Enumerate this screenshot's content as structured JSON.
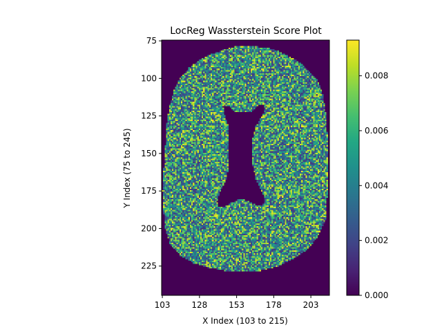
{
  "chart_data": {
    "type": "heatmap",
    "title": "LocReg Wassterstein Score Plot",
    "xlabel": "X Index (103 to 215)",
    "ylabel": "Y Index (75 to 245)",
    "xlim": [
      102.5,
      215.5
    ],
    "ylim": [
      244.5,
      74.5
    ],
    "xticks": [
      103,
      128,
      153,
      178,
      203
    ],
    "yticks": [
      75,
      100,
      125,
      150,
      175,
      200,
      225
    ],
    "colormap": "viridis",
    "colorbar": {
      "range": [
        0,
        0.0093
      ],
      "ticks": [
        0.0,
        0.002,
        0.004,
        0.006,
        0.008
      ],
      "tick_labels": [
        "0.000",
        "0.002",
        "0.004",
        "0.006",
        "0.008"
      ]
    },
    "region": {
      "brain_outline": [
        [
          160,
          78
        ],
        [
          168,
          79
        ],
        [
          176,
          80
        ],
        [
          184,
          83
        ],
        [
          192,
          87
        ],
        [
          198,
          91
        ],
        [
          203,
          96
        ],
        [
          208,
          102
        ],
        [
          211,
          110
        ],
        [
          213,
          122
        ],
        [
          214,
          135
        ],
        [
          215,
          150
        ],
        [
          215,
          165
        ],
        [
          214,
          180
        ],
        [
          213,
          195
        ],
        [
          208,
          205
        ],
        [
          201,
          214
        ],
        [
          192,
          220
        ],
        [
          182,
          225
        ],
        [
          170,
          228
        ],
        [
          157,
          229
        ],
        [
          145,
          228
        ],
        [
          134,
          226
        ],
        [
          124,
          223
        ],
        [
          115,
          218
        ],
        [
          108,
          210
        ],
        [
          105,
          200
        ],
        [
          104,
          190
        ],
        [
          103,
          175
        ],
        [
          104,
          160
        ],
        [
          105,
          145
        ],
        [
          106,
          130
        ],
        [
          108,
          118
        ],
        [
          111,
          108
        ],
        [
          115,
          100
        ],
        [
          121,
          93
        ],
        [
          128,
          88
        ],
        [
          136,
          84
        ],
        [
          144,
          81
        ],
        [
          152,
          79
        ]
      ],
      "ventricle_outline": [
        [
          144,
          119
        ],
        [
          147,
          118
        ],
        [
          152,
          122
        ],
        [
          156,
          123
        ],
        [
          160,
          123
        ],
        [
          164,
          122
        ],
        [
          168,
          118
        ],
        [
          172,
          118
        ],
        [
          172,
          122
        ],
        [
          169,
          127
        ],
        [
          166,
          132
        ],
        [
          164,
          140
        ],
        [
          164,
          150
        ],
        [
          164,
          158
        ],
        [
          166,
          167
        ],
        [
          170,
          175
        ],
        [
          172,
          180
        ],
        [
          171,
          184
        ],
        [
          168,
          185
        ],
        [
          164,
          183
        ],
        [
          159,
          181
        ],
        [
          154,
          181
        ],
        [
          149,
          183
        ],
        [
          144,
          186
        ],
        [
          141,
          186
        ],
        [
          140,
          182
        ],
        [
          142,
          176
        ],
        [
          146,
          168
        ],
        [
          148,
          158
        ],
        [
          148,
          148
        ],
        [
          148,
          138
        ],
        [
          147,
          130
        ],
        [
          145,
          124
        ]
      ],
      "inside_value_range": [
        0,
        0.0093
      ],
      "outside_value": 0.0
    }
  }
}
